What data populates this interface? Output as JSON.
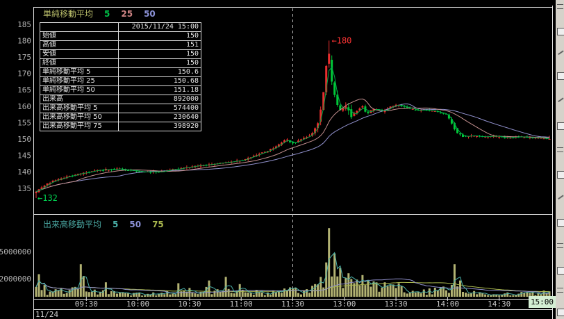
{
  "window": {
    "date": "11/24",
    "current_time": "15:00"
  },
  "price_panel": {
    "legend": {
      "title": "単純移動平均",
      "items": [
        {
          "label": "5",
          "color": "#00c048"
        },
        {
          "label": "25",
          "color": "#cf8484"
        },
        {
          "label": "50",
          "color": "#8c92d8"
        }
      ]
    },
    "y_ticks": [
      185,
      180,
      175,
      170,
      165,
      160,
      155,
      150,
      145,
      140,
      135
    ],
    "annotations": [
      {
        "text": "←180",
        "price": 180,
        "minute": 171,
        "color": "#ff3434"
      },
      {
        "text": "←132",
        "price": 132,
        "minute": 0,
        "color": "#00d050"
      }
    ],
    "info_table": {
      "header_value": "2015/11/24 15:00",
      "rows": [
        {
          "label": "始値",
          "value": "150"
        },
        {
          "label": "高値",
          "value": "151"
        },
        {
          "label": "安値",
          "value": "150"
        },
        {
          "label": "終値",
          "value": "150"
        },
        {
          "label": "単純移動平均 5",
          "value": "150.6"
        },
        {
          "label": "単純移動平均 25",
          "value": "150.68"
        },
        {
          "label": "単純移動平均 50",
          "value": "151.18"
        },
        {
          "label": "出来高",
          "value": "892000"
        },
        {
          "label": "出来高移動平均 5",
          "value": "574400"
        },
        {
          "label": "出来高移動平均 50",
          "value": "230640"
        },
        {
          "label": "出来高移動平均 75",
          "value": "398920"
        }
      ]
    }
  },
  "volume_panel": {
    "legend": {
      "title": "出来高移動平均",
      "items": [
        {
          "label": "5",
          "color": "#4ab0a8"
        },
        {
          "label": "50",
          "color": "#8c92d8"
        },
        {
          "label": "75",
          "color": "#aab84e"
        }
      ]
    },
    "y_ticks": [
      {
        "value": 5000000,
        "label": "5000000"
      },
      {
        "value": 2000000,
        "label": "2000000"
      }
    ]
  },
  "time_axis": {
    "labels": [
      {
        "text": "09:30",
        "minute": 30
      },
      {
        "text": "10:00",
        "minute": 60
      },
      {
        "text": "10:30",
        "minute": 90
      },
      {
        "text": "11:00",
        "minute": 120
      },
      {
        "text": "11:30",
        "minute": 150
      },
      {
        "text": "13:00",
        "minute": 180
      },
      {
        "text": "13:30",
        "minute": 210
      },
      {
        "text": "14:00",
        "minute": 240
      },
      {
        "text": "14:30",
        "minute": 270
      }
    ],
    "highlighted_label": "15:00",
    "date": "11/24"
  },
  "chart_data": [
    {
      "type": "candlestick",
      "title": "単純移動平均",
      "ma_windows_minutes": [
        5,
        25,
        50
      ],
      "ma_colors": {
        "ma5": "#00a848",
        "ma25": "#c49090",
        "ma50": "#9090cc"
      },
      "candle_colors": {
        "up": "#e82e2e",
        "down": "#00c838"
      },
      "ylim": [
        131,
        186
      ],
      "session_high": 180,
      "session_low": 132,
      "current_bar": {
        "open": 150,
        "high": 151,
        "low": 150,
        "close": 150
      },
      "lunch_break_minute": 150,
      "trading_minutes": 300,
      "price_path_anchors": [
        [
          0,
          133.2
        ],
        [
          2,
          134.2
        ],
        [
          5,
          135.3
        ],
        [
          9,
          136.6
        ],
        [
          14,
          137.6
        ],
        [
          20,
          138.5
        ],
        [
          27,
          139.4
        ],
        [
          34,
          140.1
        ],
        [
          42,
          140.7
        ],
        [
          50,
          140.9
        ],
        [
          57,
          140.4
        ],
        [
          63,
          140.0
        ],
        [
          72,
          139.9
        ],
        [
          80,
          140.6
        ],
        [
          88,
          141.2
        ],
        [
          97,
          141.9
        ],
        [
          106,
          142.4
        ],
        [
          114,
          142.9
        ],
        [
          122,
          143.6
        ],
        [
          130,
          145.2
        ],
        [
          136,
          146.3
        ],
        [
          141,
          147.6
        ],
        [
          145,
          149.3
        ],
        [
          147,
          149.9
        ],
        [
          150,
          148.6
        ],
        [
          153,
          149.2
        ],
        [
          157,
          150.3
        ],
        [
          161,
          151.2
        ],
        [
          164,
          153.0
        ],
        [
          166,
          156.0
        ],
        [
          168,
          161.0
        ],
        [
          170,
          170.0
        ],
        [
          171,
          179.0
        ],
        [
          172,
          173.0
        ],
        [
          174,
          165.0
        ],
        [
          176,
          161.5
        ],
        [
          179,
          158.5
        ],
        [
          182,
          160.3
        ],
        [
          185,
          157.0
        ],
        [
          188,
          158.5
        ],
        [
          191,
          160.2
        ],
        [
          194,
          157.6
        ],
        [
          198,
          159.3
        ],
        [
          203,
          158.2
        ],
        [
          208,
          160.0
        ],
        [
          212,
          160.4
        ],
        [
          217,
          159.6
        ],
        [
          222,
          158.7
        ],
        [
          228,
          158.9
        ],
        [
          234,
          158.3
        ],
        [
          240,
          157.6
        ],
        [
          243,
          155.0
        ],
        [
          246,
          152.0
        ],
        [
          250,
          150.7
        ],
        [
          256,
          150.9
        ],
        [
          262,
          150.5
        ],
        [
          268,
          150.8
        ],
        [
          275,
          150.4
        ],
        [
          282,
          150.7
        ],
        [
          290,
          150.3
        ],
        [
          300,
          150.1
        ]
      ]
    },
    {
      "type": "bar",
      "title": "出来高",
      "bar_color": "#b2b272",
      "ma_windows_minutes": [
        5,
        50,
        75
      ],
      "ma_colors": {
        "ma5": "#4ab0a8",
        "ma50": "#9090cc",
        "ma75": "#aab84e"
      },
      "y_ticks": [
        5000000,
        2000000
      ],
      "volume_base_anchors_millions": [
        [
          0,
          0.9
        ],
        [
          8,
          0.45
        ],
        [
          20,
          0.8
        ],
        [
          35,
          0.5
        ],
        [
          50,
          0.35
        ],
        [
          70,
          0.3
        ],
        [
          85,
          0.55
        ],
        [
          100,
          0.7
        ],
        [
          115,
          0.6
        ],
        [
          130,
          0.45
        ],
        [
          145,
          0.65
        ],
        [
          155,
          0.6
        ],
        [
          163,
          1.2
        ],
        [
          168,
          2.5
        ],
        [
          172,
          3.5
        ],
        [
          176,
          2.2
        ],
        [
          182,
          1.3
        ],
        [
          192,
          1.2
        ],
        [
          205,
          0.9
        ],
        [
          215,
          0.7
        ],
        [
          228,
          0.6
        ],
        [
          240,
          0.9
        ],
        [
          246,
          0.9
        ],
        [
          252,
          0.45
        ],
        [
          262,
          0.3
        ],
        [
          275,
          0.3
        ],
        [
          288,
          0.35
        ],
        [
          300,
          0.5
        ]
      ],
      "volume_spikes_millions": [
        [
          1,
          2.5
        ],
        [
          5,
          1.3
        ],
        [
          26,
          3.6
        ],
        [
          28,
          2.3
        ],
        [
          41,
          1.6
        ],
        [
          83,
          1.5
        ],
        [
          100,
          1.8
        ],
        [
          110,
          2.2
        ],
        [
          118,
          1.4
        ],
        [
          168,
          3.8
        ],
        [
          170,
          5.2
        ],
        [
          171,
          7.6
        ],
        [
          173,
          6.0
        ],
        [
          174,
          4.8
        ],
        [
          177,
          3.2
        ],
        [
          181,
          2.6
        ],
        [
          186,
          1.9
        ],
        [
          190,
          2.4
        ],
        [
          196,
          1.7
        ],
        [
          203,
          1.6
        ],
        [
          210,
          1.5
        ],
        [
          244,
          3.6
        ],
        [
          247,
          1.8
        ]
      ]
    }
  ]
}
